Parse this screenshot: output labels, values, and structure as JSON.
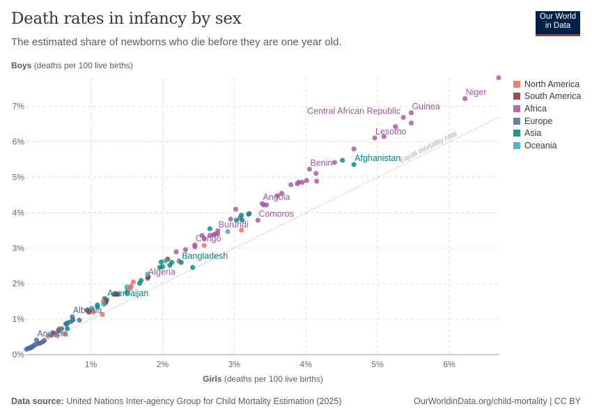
{
  "header": {
    "title": "Death rates in infancy by sex",
    "subtitle": "The estimated share of newborns who die before they are one year old.",
    "logo": "Our World in Data",
    "logo_line1": "Our World",
    "logo_line2": "in Data"
  },
  "footer": {
    "source_label": "Data source:",
    "source": "United Nations Inter-agency Group for Child Mortality Estimation (2025)",
    "link": "OurWorldinData.org/child-mortality | CC BY"
  },
  "chart_data": {
    "type": "scatter",
    "title": "Death rates in infancy by sex",
    "xlabel_bold": "Girls",
    "xlabel_rest": "(deaths per 100 live births)",
    "ylabel_bold": "Boys",
    "ylabel_rest": "(deaths per 100 live births)",
    "xlim": [
      0.1,
      6.7
    ],
    "ylim": [
      0,
      7.8
    ],
    "xticks": [
      {
        "v": 1,
        "label": "1%"
      },
      {
        "v": 2,
        "label": "2%"
      },
      {
        "v": 3,
        "label": "3%"
      },
      {
        "v": 4,
        "label": "4%"
      },
      {
        "v": 5,
        "label": "5%"
      },
      {
        "v": 6,
        "label": "6%"
      }
    ],
    "yticks": [
      {
        "v": 0,
        "label": "0%"
      },
      {
        "v": 1,
        "label": "1%"
      },
      {
        "v": 2,
        "label": "2%"
      },
      {
        "v": 3,
        "label": "3%"
      },
      {
        "v": 4,
        "label": "4%"
      },
      {
        "v": 5,
        "label": "5%"
      },
      {
        "v": 6,
        "label": "6%"
      },
      {
        "v": 7,
        "label": "7%"
      }
    ],
    "grid": true,
    "reference_line": {
      "label": "Equal mortality rate",
      "slope": 1
    },
    "legend_position": "right",
    "legend": [
      {
        "name": "North America",
        "color": "#E56E5A"
      },
      {
        "name": "South America",
        "color": "#883039"
      },
      {
        "name": "Africa",
        "color": "#A2559C"
      },
      {
        "name": "Europe",
        "color": "#4C6A9C"
      },
      {
        "name": "Asia",
        "color": "#00847E"
      },
      {
        "name": "Oceania",
        "color": "#38AABA"
      }
    ],
    "series": [
      {
        "name": "Africa",
        "points": [
          [
            6.69,
            7.81
          ],
          [
            6.22,
            7.22,
            "Niger"
          ],
          [
            5.47,
            6.82,
            "Guinea"
          ],
          [
            5.36,
            6.69,
            "Central African Republic"
          ],
          [
            5.47,
            6.53
          ],
          [
            5.25,
            6.43
          ],
          [
            4.96,
            6.11,
            "Lesotho"
          ],
          [
            5.09,
            6.15
          ],
          [
            4.67,
            5.8
          ],
          [
            4.4,
            5.42
          ],
          [
            4.05,
            5.23,
            "Benin"
          ],
          [
            4.14,
            5.11
          ],
          [
            4.15,
            4.89
          ],
          [
            4.01,
            4.91
          ],
          [
            3.95,
            4.86
          ],
          [
            3.9,
            4.86
          ],
          [
            3.79,
            4.79
          ],
          [
            3.88,
            4.82
          ],
          [
            3.39,
            4.26,
            "Angola"
          ],
          [
            3.41,
            4.22
          ],
          [
            3.45,
            4.22
          ],
          [
            3.6,
            4.48
          ],
          [
            3.66,
            4.55
          ],
          [
            3.33,
            3.79,
            "Comoros"
          ],
          [
            3.02,
            4.1
          ],
          [
            2.95,
            3.82
          ],
          [
            3.08,
            3.86
          ],
          [
            3.21,
            3.98
          ],
          [
            2.77,
            3.49,
            "Burundi"
          ],
          [
            2.73,
            3.4
          ],
          [
            2.66,
            3.36
          ],
          [
            2.71,
            3.38
          ],
          [
            2.77,
            3.4
          ],
          [
            2.58,
            3.28
          ],
          [
            2.55,
            3.36
          ],
          [
            2.45,
            3.09,
            "Congo"
          ],
          [
            2.45,
            3.04
          ],
          [
            2.19,
            2.9
          ],
          [
            2.32,
            2.96
          ],
          [
            2.23,
            2.64
          ],
          [
            1.79,
            2.15,
            "Algeria"
          ],
          [
            1.38,
            1.7
          ],
          [
            1.2,
            1.45
          ]
        ]
      },
      {
        "name": "Asia",
        "points": [
          [
            4.67,
            5.36,
            "Afghanistan"
          ],
          [
            4.51,
            5.48
          ],
          [
            3.1,
            3.93
          ],
          [
            3.11,
            3.79
          ],
          [
            3.03,
            3.79
          ],
          [
            3.2,
            3.96
          ],
          [
            2.66,
            3.55
          ],
          [
            2.26,
            2.6,
            "Bangladesh"
          ],
          [
            2.42,
            2.46
          ],
          [
            2.13,
            2.6
          ],
          [
            2.1,
            2.52
          ],
          [
            1.98,
            2.61
          ],
          [
            1.96,
            2.46
          ],
          [
            2.0,
            2.48
          ],
          [
            1.7,
            2.09
          ],
          [
            1.68,
            2.01
          ],
          [
            1.5,
            1.74
          ],
          [
            1.22,
            1.55,
            "Azerbaijan"
          ],
          [
            1.19,
            1.58
          ],
          [
            1.09,
            1.4
          ],
          [
            1.09,
            1.34
          ],
          [
            1.01,
            1.26
          ],
          [
            0.75,
            0.98
          ],
          [
            0.68,
            0.9
          ],
          [
            0.65,
            0.87
          ],
          [
            0.67,
            0.73
          ],
          [
            0.59,
            0.73
          ]
        ]
      },
      {
        "name": "South America",
        "points": [
          [
            2.07,
            2.69
          ],
          [
            1.8,
            2.19
          ],
          [
            1.32,
            1.7
          ],
          [
            1.36,
            1.7
          ],
          [
            1.21,
            1.49
          ],
          [
            0.95,
            1.26
          ],
          [
            0.97,
            1.2
          ],
          [
            0.55,
            0.67
          ],
          [
            0.48,
            0.61
          ]
        ]
      },
      {
        "name": "North America",
        "points": [
          [
            3.1,
            3.51
          ],
          [
            2.58,
            3.08
          ],
          [
            1.59,
            2.05
          ],
          [
            1.56,
            1.93
          ],
          [
            1.55,
            1.87
          ],
          [
            1.51,
            1.83
          ],
          [
            1.17,
            1.49
          ],
          [
            1.16,
            1.13
          ],
          [
            1.03,
            1.2
          ],
          [
            0.63,
            0.59
          ],
          [
            0.56,
            0.73
          ],
          [
            0.53,
            0.53
          ],
          [
            0.4,
            0.52
          ]
        ]
      },
      {
        "name": "Oceania",
        "points": [
          [
            2.91,
            3.47
          ],
          [
            2.04,
            2.64
          ],
          [
            1.79,
            2.27
          ],
          [
            1.5,
            1.91
          ],
          [
            1.51,
            1.76
          ],
          [
            1.01,
            1.31
          ],
          [
            1.18,
            1.42
          ]
        ]
      },
      {
        "name": "Europe",
        "points": [
          [
            0.74,
            1.07,
            "Albania"
          ],
          [
            0.84,
            0.97
          ],
          [
            0.72,
            0.93
          ],
          [
            0.66,
            0.85
          ],
          [
            0.55,
            0.7
          ],
          [
            0.45,
            0.55
          ],
          [
            0.35,
            0.4
          ],
          [
            0.24,
            0.41,
            "Andorra"
          ],
          [
            0.3,
            0.33
          ],
          [
            0.25,
            0.3
          ],
          [
            0.22,
            0.28
          ],
          [
            0.2,
            0.25
          ],
          [
            0.17,
            0.22
          ],
          [
            0.14,
            0.19
          ],
          [
            0.12,
            0.17
          ],
          [
            0.1,
            0.15
          ],
          [
            0.15,
            0.18
          ],
          [
            0.18,
            0.21
          ],
          [
            0.28,
            0.32
          ],
          [
            0.33,
            0.36
          ]
        ]
      }
    ]
  }
}
